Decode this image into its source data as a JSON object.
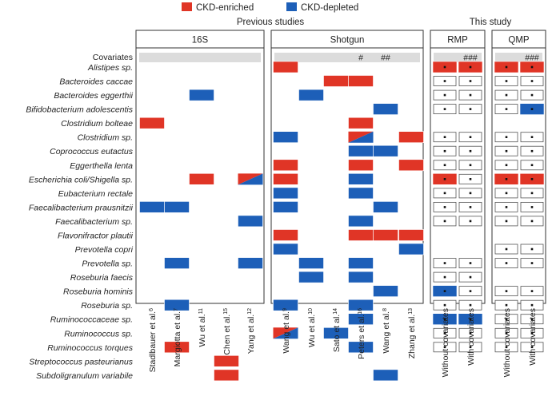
{
  "chart_data": {
    "type": "heatmap",
    "legend": [
      {
        "label": "CKD-enriched",
        "color": "#e03526"
      },
      {
        "label": "CKD-depleted",
        "color": "#1d5fb8"
      }
    ],
    "group_labels": [
      {
        "id": "prev",
        "label": "Previous studies"
      },
      {
        "id": "this",
        "label": "This study"
      }
    ],
    "covariates_label": "Covariates",
    "taxa": [
      "Alistipes sp.",
      "Bacteroides caccae",
      "Bacteroides eggerthii",
      "Bifidobacterium adolescentis",
      "Clostridium bolteae",
      "Clostridium sp.",
      "Coprococcus eutactus",
      "Eggerthella lenta",
      "Escherichia coli/Shigella sp.",
      "Eubacterium rectale",
      "Faecalibacterium prausnitzii",
      "Faecalibacterium sp.",
      "Flavonifractor plautii",
      "Prevotella copri",
      "Prevotella sp.",
      "Roseburia faecis",
      "Roseburia hominis",
      "Roseburia sp.",
      "Ruminococcaceae sp.",
      "Ruminococcus sp.",
      "Ruminococcus torques",
      "Streptococcus pasteurianus",
      "Subdoligranulum variabile"
    ],
    "panels": [
      {
        "title": "16S",
        "group": "prev",
        "columns": [
          {
            "label": "Stadlbauer et al.",
            "ref": "6"
          },
          {
            "label": "Margiotta et al.",
            "ref": "7"
          },
          {
            "label": "Wu et al.",
            "ref": "11"
          },
          {
            "label": "Chen et al.",
            "ref": "15"
          },
          {
            "label": "Yang et al.",
            "ref": "12"
          }
        ],
        "covariate_marks": [
          "",
          "",
          "",
          "",
          ""
        ],
        "cells": [
          [
            "",
            "",
            "",
            "",
            ""
          ],
          [
            "",
            "",
            "",
            "",
            ""
          ],
          [
            "",
            "",
            "D",
            "",
            ""
          ],
          [
            "",
            "",
            "",
            "",
            ""
          ],
          [
            "E",
            "",
            "",
            "",
            ""
          ],
          [
            "",
            "",
            "",
            "",
            ""
          ],
          [
            "",
            "",
            "",
            "",
            ""
          ],
          [
            "",
            "",
            "",
            "",
            ""
          ],
          [
            "",
            "",
            "E",
            "",
            "ED"
          ],
          [
            "",
            "",
            "",
            "",
            ""
          ],
          [
            "D",
            "D",
            "",
            "",
            ""
          ],
          [
            "",
            "",
            "",
            "",
            "D"
          ],
          [
            "",
            "",
            "",
            "",
            ""
          ],
          [
            "",
            "",
            "",
            "",
            ""
          ],
          [
            "",
            "D",
            "",
            "",
            "D"
          ],
          [
            "",
            "",
            "",
            "",
            ""
          ],
          [
            "",
            "",
            "",
            "",
            ""
          ],
          [
            "",
            "D",
            "",
            "",
            ""
          ],
          [
            "",
            "",
            "",
            "",
            ""
          ],
          [
            "",
            "",
            "",
            "",
            ""
          ],
          [
            "",
            "E",
            "",
            "",
            ""
          ],
          [
            "",
            "",
            "",
            "E",
            ""
          ],
          [
            "",
            "",
            "",
            "E",
            ""
          ]
        ]
      },
      {
        "title": "Shotgun",
        "group": "prev",
        "columns": [
          {
            "label": "Wang et al.",
            "ref": "9"
          },
          {
            "label": "Wu et al.",
            "ref": "10"
          },
          {
            "label": "Sato et al.",
            "ref": "14"
          },
          {
            "label": "Peters et al.",
            "ref": "16"
          },
          {
            "label": "Wang et al.",
            "ref": "8"
          },
          {
            "label": "Zhang et al.",
            "ref": "13"
          }
        ],
        "covariate_marks": [
          "",
          "",
          "",
          "#",
          "##",
          ""
        ],
        "cells": [
          [
            "E",
            "",
            "",
            "",
            "",
            ""
          ],
          [
            "",
            "",
            "E",
            "E",
            "",
            ""
          ],
          [
            "",
            "D",
            "",
            "",
            "",
            ""
          ],
          [
            "",
            "",
            "",
            "",
            "D",
            ""
          ],
          [
            "",
            "",
            "",
            "E",
            "",
            ""
          ],
          [
            "D",
            "",
            "",
            "ED",
            "",
            "E"
          ],
          [
            "",
            "",
            "",
            "D",
            "D",
            ""
          ],
          [
            "E",
            "",
            "",
            "E",
            "",
            "E"
          ],
          [
            "E",
            "",
            "",
            "D",
            "",
            ""
          ],
          [
            "D",
            "",
            "",
            "D",
            "",
            ""
          ],
          [
            "D",
            "",
            "",
            "",
            "D",
            ""
          ],
          [
            "",
            "",
            "",
            "D",
            "",
            ""
          ],
          [
            "E",
            "",
            "",
            "E",
            "E",
            "E"
          ],
          [
            "D",
            "",
            "",
            "",
            "",
            "D"
          ],
          [
            "",
            "D",
            "",
            "D",
            "",
            ""
          ],
          [
            "",
            "D",
            "",
            "D",
            "",
            ""
          ],
          [
            "",
            "",
            "",
            "",
            "D",
            ""
          ],
          [
            "D",
            "",
            "",
            "D",
            "",
            ""
          ],
          [
            "",
            "",
            "",
            "D",
            "",
            ""
          ],
          [
            "ED",
            "",
            "D",
            "",
            "",
            ""
          ],
          [
            "",
            "",
            "",
            "D",
            "",
            ""
          ],
          [
            "",
            "",
            "",
            "",
            "",
            ""
          ],
          [
            "",
            "",
            "",
            "",
            "D",
            ""
          ]
        ]
      },
      {
        "title": "RMP",
        "group": "this",
        "columns": [
          {
            "label": "Without covariates",
            "ref": ""
          },
          {
            "label": "With covariates",
            "ref": ""
          }
        ],
        "covariate_marks": [
          "",
          "###"
        ],
        "cells": [
          [
            "E",
            "E"
          ],
          [
            "W",
            "W"
          ],
          [
            "W",
            "W"
          ],
          [
            "W",
            "W"
          ],
          [
            "",
            ""
          ],
          [
            "W",
            "W"
          ],
          [
            "W",
            "W"
          ],
          [
            "W",
            "W"
          ],
          [
            "E",
            "W"
          ],
          [
            "W",
            "W"
          ],
          [
            "W",
            "W"
          ],
          [
            "W",
            "W"
          ],
          [
            "",
            ""
          ],
          [
            "",
            ""
          ],
          [
            "W",
            "W"
          ],
          [
            "W",
            "W"
          ],
          [
            "D",
            "W"
          ],
          [
            "W",
            "W"
          ],
          [
            "D",
            "D"
          ],
          [
            "W",
            "W"
          ],
          [
            "W",
            "W"
          ],
          [
            "",
            ""
          ],
          [
            "",
            ""
          ]
        ]
      },
      {
        "title": "QMP",
        "group": "this",
        "columns": [
          {
            "label": "Without covariates",
            "ref": ""
          },
          {
            "label": "With covariates",
            "ref": ""
          }
        ],
        "covariate_marks": [
          "",
          "###"
        ],
        "cells": [
          [
            "E",
            "E"
          ],
          [
            "W",
            "W"
          ],
          [
            "W",
            "W"
          ],
          [
            "W",
            "D"
          ],
          [
            "",
            ""
          ],
          [
            "W",
            "W"
          ],
          [
            "W",
            "W"
          ],
          [
            "W",
            "W"
          ],
          [
            "E",
            "E"
          ],
          [
            "W",
            "W"
          ],
          [
            "W",
            "W"
          ],
          [
            "W",
            "W"
          ],
          [
            "",
            ""
          ],
          [
            "W",
            "W"
          ],
          [
            "W",
            "W"
          ],
          [
            "",
            ""
          ],
          [
            "W",
            "W"
          ],
          [
            "W",
            "W"
          ],
          [
            "W",
            "W"
          ],
          [
            "W",
            "W"
          ],
          [
            "W",
            "W"
          ],
          [
            "",
            ""
          ],
          [
            "",
            ""
          ]
        ]
      }
    ]
  }
}
